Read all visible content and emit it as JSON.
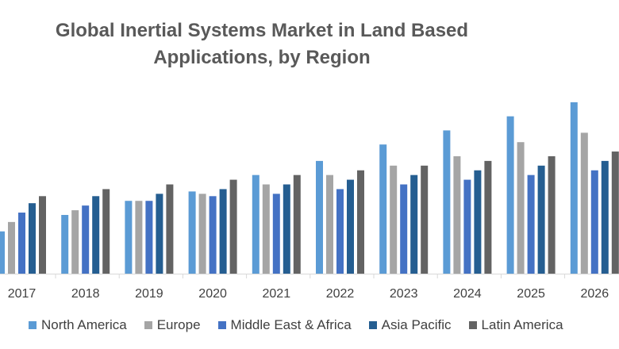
{
  "chart_data": {
    "type": "bar",
    "title_lines": [
      "Global Inertial Systems Market in Land Based",
      "Applications, by Region"
    ],
    "categories": [
      "2017",
      "2018",
      "2019",
      "2020",
      "2021",
      "2022",
      "2023",
      "2024",
      "2025",
      "2026"
    ],
    "series": [
      {
        "name": "North America",
        "color": "#5B9BD5",
        "values": [
          9,
          12.5,
          15.5,
          17.5,
          21,
          24,
          27.5,
          30.5,
          33.5,
          36.5
        ]
      },
      {
        "name": "Europe",
        "color": "#A5A5A5",
        "values": [
          11,
          13.5,
          15.5,
          17,
          19,
          21,
          23,
          25,
          28,
          30
        ]
      },
      {
        "name": "Middle East & Africa",
        "color": "#4472C4",
        "values": [
          13,
          14.5,
          15.5,
          16.5,
          17,
          18,
          19,
          20,
          21,
          22
        ]
      },
      {
        "name": "Asia Pacific",
        "color": "#255E91",
        "values": [
          15,
          16.5,
          17,
          18,
          19,
          20,
          21,
          22,
          23,
          24
        ]
      },
      {
        "name": "Latin America",
        "color": "#636363",
        "values": [
          16.5,
          18,
          19,
          20,
          21,
          22,
          23,
          24,
          25,
          26
        ]
      }
    ],
    "ylim": [
      0,
      38
    ],
    "grid": false,
    "legend_position": "bottom"
  }
}
